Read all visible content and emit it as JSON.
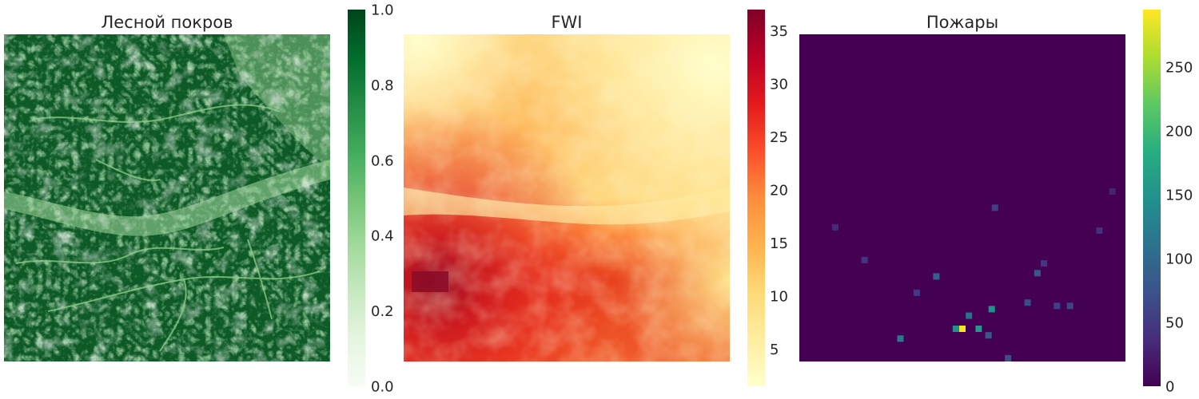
{
  "chart_data": [
    {
      "type": "heatmap",
      "title": "Лесной покров",
      "colormap": "Greens",
      "color_low": "#f7fcf5",
      "color_high": "#00441b",
      "colorbar_range": [
        0.0,
        1.0
      ],
      "colorbar_ticks": [
        "0.0",
        "0.2",
        "0.4",
        "0.6",
        "0.8",
        "1.0"
      ],
      "description_values": "mostly dense forest cover near 1.0 with lighter river/clearing patterns; lower values in a diagonal band mid-left and at the top-right"
    },
    {
      "type": "heatmap",
      "title": "FWI",
      "colormap": "YlOrRd",
      "color_low": "#ffffcc",
      "color_high": "#800026",
      "colorbar_range": [
        1.5,
        37
      ],
      "colorbar_ticks": [
        "5",
        "10",
        "15",
        "20",
        "25",
        "30",
        "35"
      ],
      "description_values": "low FWI (~3-8) at top-right, moderate (~12-18) in upper-middle, high (~25-35) in lower-left quadrant, peak ~35 at left edge"
    },
    {
      "type": "heatmap",
      "title": "Пожары",
      "colormap": "viridis",
      "color_low": "#440154",
      "color_high": "#fde725",
      "colorbar_range": [
        0,
        295
      ],
      "colorbar_ticks": [
        "0",
        "50",
        "100",
        "150",
        "200",
        "250"
      ],
      "hotspots": [
        {
          "col": 0.5,
          "row": 0.9,
          "value": 290
        },
        {
          "col": 0.48,
          "row": 0.9,
          "value": 150
        },
        {
          "col": 0.55,
          "row": 0.9,
          "value": 160
        },
        {
          "col": 0.52,
          "row": 0.86,
          "value": 110
        },
        {
          "col": 0.59,
          "row": 0.84,
          "value": 150
        },
        {
          "col": 0.31,
          "row": 0.93,
          "value": 120
        },
        {
          "col": 0.42,
          "row": 0.74,
          "value": 90
        },
        {
          "col": 0.73,
          "row": 0.73,
          "value": 80
        },
        {
          "col": 0.7,
          "row": 0.82,
          "value": 70
        },
        {
          "col": 0.64,
          "row": 0.99,
          "value": 70
        },
        {
          "col": 0.83,
          "row": 0.83,
          "value": 60
        },
        {
          "col": 0.79,
          "row": 0.83,
          "value": 55
        },
        {
          "col": 0.6,
          "row": 0.53,
          "value": 55
        },
        {
          "col": 0.2,
          "row": 0.69,
          "value": 45
        },
        {
          "col": 0.75,
          "row": 0.7,
          "value": 45
        },
        {
          "col": 0.11,
          "row": 0.59,
          "value": 35
        },
        {
          "col": 0.92,
          "row": 0.6,
          "value": 40
        },
        {
          "col": 0.96,
          "row": 0.48,
          "value": 30
        },
        {
          "col": 0.58,
          "row": 0.92,
          "value": 80
        },
        {
          "col": 0.36,
          "row": 0.79,
          "value": 50
        }
      ]
    }
  ]
}
